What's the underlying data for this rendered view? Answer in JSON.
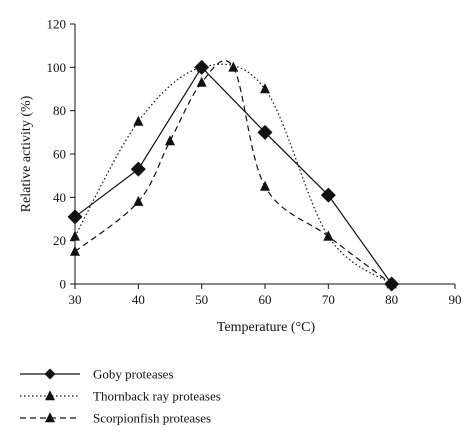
{
  "chart_data": {
    "type": "line",
    "xlabel": "Temperature (°C)",
    "ylabel": "Relative activity (%)",
    "xlim": [
      30,
      90
    ],
    "ylim": [
      0,
      120
    ],
    "x_ticks": [
      30,
      40,
      50,
      60,
      70,
      80,
      90
    ],
    "y_ticks": [
      0,
      20,
      40,
      60,
      80,
      100,
      120
    ],
    "grid": false,
    "legend_position": "bottom-left",
    "series": [
      {
        "name": "Goby proteases",
        "line_style": "solid",
        "marker": "diamond",
        "x": [
          30,
          40,
          50,
          60,
          70,
          80
        ],
        "y": [
          31,
          53,
          100,
          70,
          41,
          0
        ]
      },
      {
        "name": "Thornback ray proteases",
        "line_style": "dotted",
        "marker": "triangle",
        "x": [
          30,
          40,
          50,
          60,
          70,
          80
        ],
        "y": [
          22,
          75,
          100,
          90,
          22,
          0
        ]
      },
      {
        "name": "Scorpionfish proteases",
        "line_style": "dashed",
        "marker": "triangle",
        "x": [
          30,
          40,
          45,
          50,
          55,
          60,
          70,
          80
        ],
        "y": [
          15,
          38,
          66,
          93,
          100,
          45,
          22,
          0
        ]
      }
    ]
  }
}
